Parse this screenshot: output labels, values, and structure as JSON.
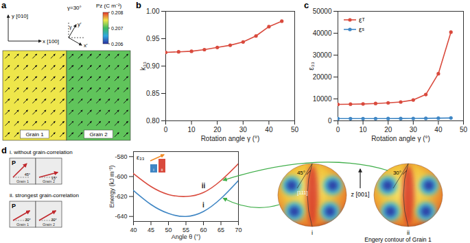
{
  "panel_a": {
    "letter": "a",
    "axis_x_label": "x [100]",
    "axis_y_label": "y [010]",
    "rotated_x_label": "x'",
    "rotated_y_label": "y'",
    "gamma_symbol": "γ",
    "gamma_label": "γ=30°",
    "gamma": 30,
    "colorbar": {
      "title": "Pz (C m⁻²)",
      "range": [
        0.206,
        0.208
      ],
      "ticks": [
        0.206,
        0.207,
        0.208
      ],
      "colors": [
        "#2a2f9e",
        "#2fa8e0",
        "#3dbb5f",
        "#eee64a",
        "#e2352a"
      ]
    },
    "grains": [
      {
        "name": "Grain 1",
        "pz": 0.2075
      },
      {
        "name": "Grain 2",
        "pz": 0.2071
      }
    ]
  },
  "chart_data": [
    {
      "panel": "b",
      "type": "line",
      "x_label": "Rotation angle γ (°)",
      "y_label": "k₃₃",
      "x": [
        0,
        5,
        10,
        15,
        20,
        25,
        30,
        35,
        40,
        45
      ],
      "series": [
        {
          "color": "#d94a3d",
          "marker": "circle",
          "values": [
            0.925,
            0.926,
            0.927,
            0.93,
            0.934,
            0.938,
            0.944,
            0.955,
            0.972,
            0.982
          ]
        }
      ],
      "xlim": [
        0,
        50
      ],
      "xticks": [
        0,
        10,
        20,
        30,
        40,
        50
      ],
      "ylim": [
        0.8,
        1.0
      ],
      "yticks": [
        {
          "value": 0.8,
          "label": "0.80"
        },
        0.85,
        {
          "value": 0.9,
          "label": "0.90"
        },
        0.95,
        {
          "value": 1.0,
          "label": "1.00"
        }
      ]
    },
    {
      "panel": "c",
      "type": "line",
      "x_label": "Rotation angle γ (°)",
      "y_label": "ε₃₃",
      "legend": "top-left",
      "x": [
        0,
        5,
        10,
        15,
        20,
        25,
        30,
        35,
        40,
        45
      ],
      "series": [
        {
          "name": "εᵀ",
          "color": "#d94a3d",
          "marker": "circle",
          "values": [
            7500,
            7600,
            7700,
            7900,
            8200,
            8600,
            9500,
            12000,
            21500,
            40500
          ]
        },
        {
          "name": "εˢ",
          "color": "#3f86c4",
          "marker": "circle",
          "values": [
            1000,
            1000,
            1000,
            1020,
            1030,
            1050,
            1080,
            1120,
            1200,
            1300
          ]
        }
      ],
      "xlim": [
        0,
        50
      ],
      "xticks": [
        0,
        10,
        20,
        30,
        40,
        50
      ],
      "ylim": [
        0,
        50000
      ],
      "yticks": [
        0,
        10000,
        20000,
        30000,
        40000,
        50000
      ]
    },
    {
      "panel": "d",
      "type": "line",
      "x_label": "Angle θ (°)",
      "y_label": "Energy (kJ m⁻³)",
      "x": [
        40,
        45,
        50,
        55,
        60,
        65,
        70
      ],
      "series": [
        {
          "name": "i",
          "color": "#3f86c4",
          "values": [
            -614,
            -628,
            -637,
            -640,
            -635,
            -622,
            -604
          ]
        },
        {
          "name": "ii",
          "color": "#d94a3d",
          "values": [
            -597,
            -610,
            -618,
            -620,
            -616,
            -604,
            -587
          ]
        }
      ],
      "xlim": [
        40,
        70
      ],
      "xticks": [
        40,
        45,
        50,
        55,
        60,
        65,
        70
      ],
      "ylim": [
        -645,
        -575
      ],
      "yticks": [
        -640,
        -620,
        -600,
        -580
      ],
      "inset": {
        "label": "ε₃₃",
        "categories": [
          "i",
          "ii"
        ],
        "values": [
          0.6,
          1.0
        ],
        "colors": [
          "#3f86c4",
          "#d94a3d"
        ]
      }
    }
  ],
  "panel_d": {
    "schematic": [
      {
        "title": "i. without grain-correlation",
        "grains": [
          {
            "name": "Grain 1",
            "angle": 45,
            "angle_label": "45°"
          },
          {
            "name": "Grain 2",
            "angle": 15,
            "angle_label": "15°"
          }
        ]
      },
      {
        "title": "ii. strongest grain-correlation",
        "grains": [
          {
            "name": "Grain 1",
            "angle": 30,
            "angle_label": "30°"
          },
          {
            "name": "Grain 2",
            "angle": 30,
            "angle_label": "30°"
          }
        ]
      }
    ],
    "polarization_label": "P",
    "contours": [
      {
        "label": "i",
        "angle_label": "45°",
        "direction_label": "[111]"
      },
      {
        "label": "ii",
        "angle_label": "30°"
      }
    ],
    "axis_label": "z [001]",
    "caption": "Engery contour of Grain 1"
  }
}
